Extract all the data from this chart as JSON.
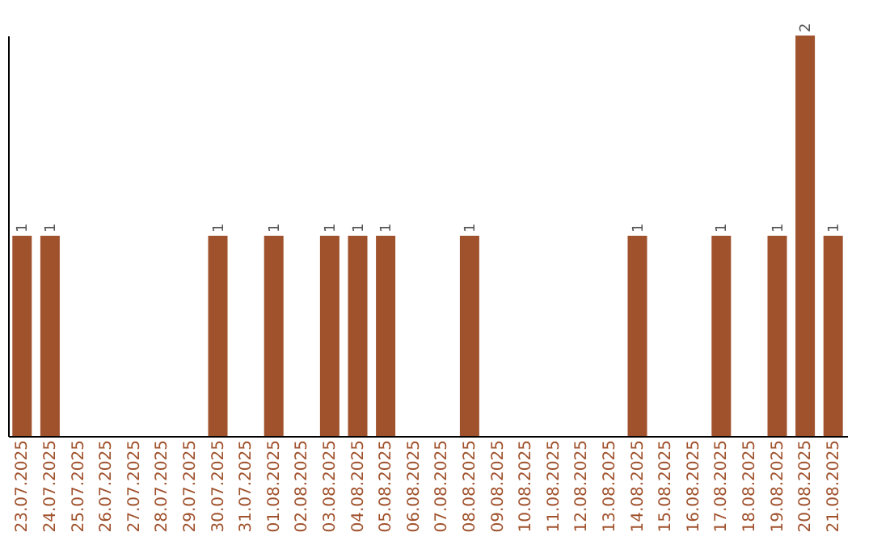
{
  "chart_data": {
    "type": "bar",
    "categories": [
      "23.07.2025",
      "24.07.2025",
      "25.07.2025",
      "26.07.2025",
      "27.07.2025",
      "28.07.2025",
      "29.07.2025",
      "30.07.2025",
      "31.07.2025",
      "01.08.2025",
      "02.08.2025",
      "03.08.2025",
      "04.08.2025",
      "05.08.2025",
      "06.08.2025",
      "07.08.2025",
      "08.08.2025",
      "09.08.2025",
      "10.08.2025",
      "11.08.2025",
      "12.08.2025",
      "13.08.2025",
      "14.08.2025",
      "15.08.2025",
      "16.08.2025",
      "17.08.2025",
      "18.08.2025",
      "19.08.2025",
      "20.08.2025",
      "21.08.2025"
    ],
    "values": [
      1,
      1,
      0,
      0,
      0,
      0,
      0,
      1,
      0,
      1,
      0,
      1,
      1,
      1,
      0,
      0,
      1,
      0,
      0,
      0,
      0,
      0,
      1,
      0,
      0,
      1,
      0,
      1,
      2,
      1
    ],
    "value_labels": [
      "1",
      "1",
      null,
      null,
      null,
      null,
      null,
      "1",
      null,
      "1",
      null,
      "1",
      "1",
      "1",
      null,
      null,
      "1",
      null,
      null,
      null,
      null,
      null,
      "1",
      null,
      null,
      "1",
      null,
      "1",
      "2",
      "1"
    ],
    "color": "#a0522d",
    "grid": false
  }
}
